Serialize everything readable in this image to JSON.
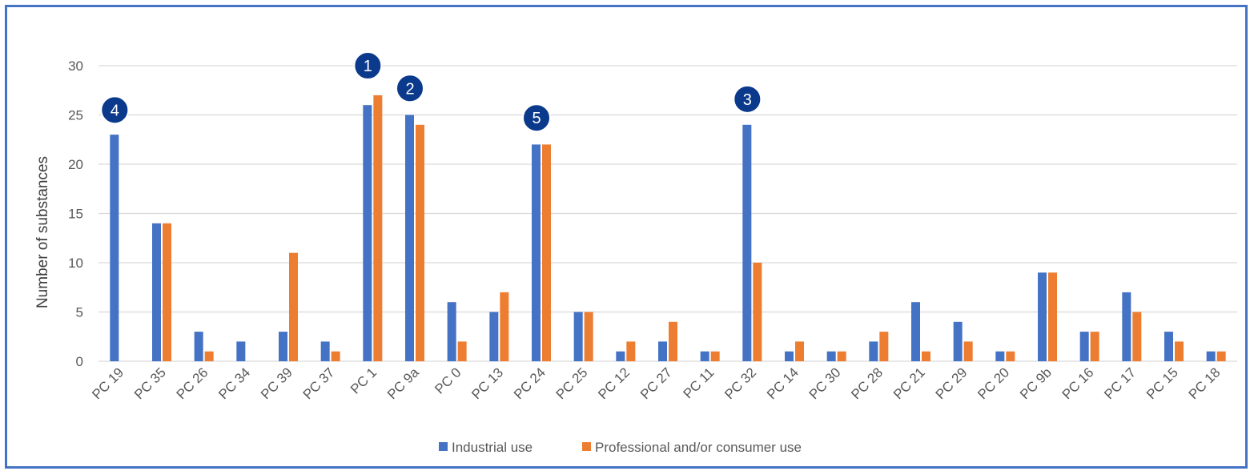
{
  "chart_data": {
    "type": "bar",
    "ylabel": "Number of substances",
    "ylim": [
      0,
      30
    ],
    "yticks": [
      0,
      5,
      10,
      15,
      20,
      25,
      30
    ],
    "grid": true,
    "legend_position": "bottom",
    "categories": [
      "PC 19",
      "PC 35",
      "PC 26",
      "PC 34",
      "PC 39",
      "PC 37",
      "PC 1",
      "PC 9a",
      "PC 0",
      "PC 13",
      "PC 24",
      "PC 25",
      "PC 12",
      "PC 27",
      "PC 11",
      "PC 32",
      "PC 14",
      "PC 30",
      "PC 28",
      "PC 21",
      "PC 29",
      "PC 20",
      "PC 9b",
      "PC 16",
      "PC 17",
      "PC 15",
      "PC 18"
    ],
    "series": [
      {
        "name": "Industrial use",
        "color": "#4472c4",
        "values": [
          23,
          14,
          3,
          2,
          3,
          2,
          26,
          25,
          6,
          5,
          22,
          5,
          1,
          2,
          1,
          24,
          1,
          1,
          2,
          6,
          4,
          1,
          9,
          3,
          7,
          3,
          1
        ]
      },
      {
        "name": "Professional and/or consumer use",
        "color": "#ed7d31",
        "values": [
          0,
          14,
          1,
          0,
          11,
          1,
          27,
          24,
          2,
          7,
          22,
          5,
          2,
          4,
          1,
          10,
          2,
          1,
          3,
          1,
          2,
          1,
          9,
          3,
          5,
          2,
          1
        ]
      }
    ],
    "annotations": [
      {
        "label": "1",
        "category": "PC 1",
        "value": 30
      },
      {
        "label": "2",
        "category": "PC 9a",
        "value": 27.7
      },
      {
        "label": "3",
        "category": "PC 32",
        "value": 26.6
      },
      {
        "label": "4",
        "category": "PC 19",
        "value": 25.5
      },
      {
        "label": "5",
        "category": "PC 24",
        "value": 24.7
      }
    ],
    "annotation_color": "#0b3a8c"
  }
}
